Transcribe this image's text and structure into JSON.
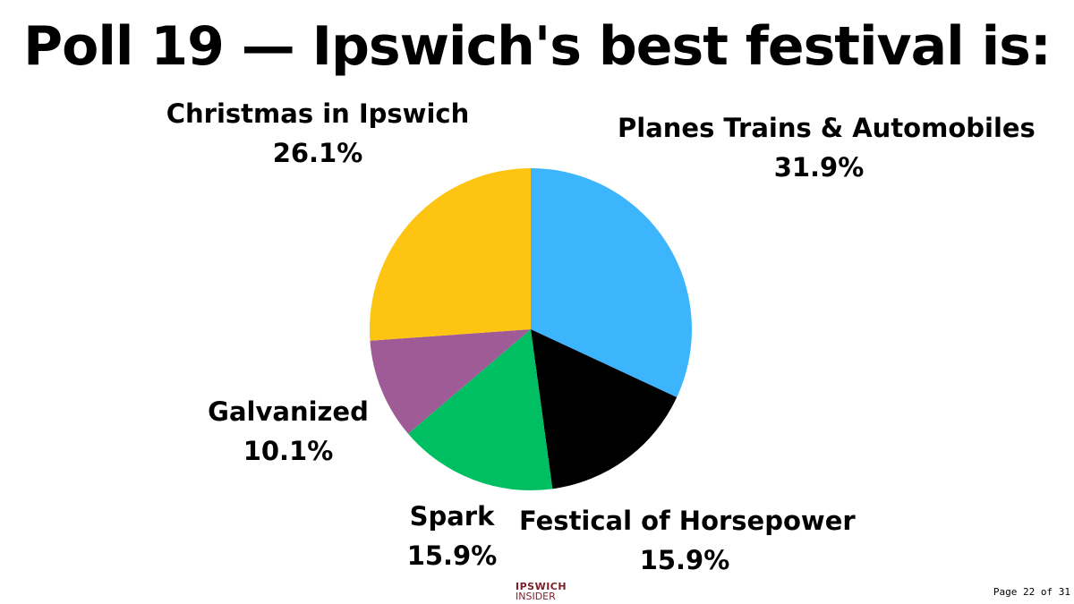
{
  "chart_data": {
    "type": "pie",
    "title": "Poll 19 — Ipswich's best festival is:",
    "slices": [
      {
        "label": "Planes Trains & Automobiles",
        "value": 31.9,
        "display": "31.9%",
        "color": "#3db5fd"
      },
      {
        "label": "Festical of Horsepower",
        "value": 15.9,
        "display": "15.9%",
        "color": "#000000"
      },
      {
        "label": "Spark",
        "value": 15.9,
        "display": "15.9%",
        "color": "#00bf63"
      },
      {
        "label": "Galvanized",
        "value": 10.1,
        "display": "10.1%",
        "color": "#9e5b96"
      },
      {
        "label": "Christmas in Ipswich",
        "value": 26.1,
        "display": "26.1%",
        "color": "#fdc412"
      }
    ]
  },
  "footer": {
    "logo_line1": "IPSWICH",
    "logo_line2": "INSIDER",
    "page_indicator": "Page 22 of 31"
  }
}
